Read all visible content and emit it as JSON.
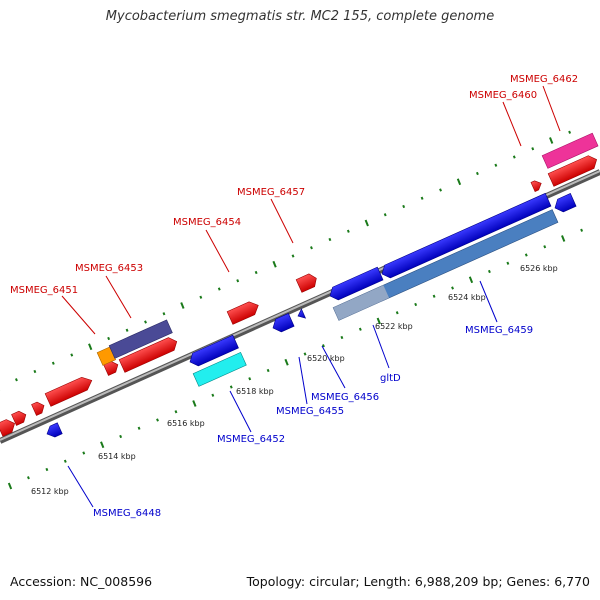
{
  "title": "Mycobacterium smegmatis str. MC2 155, complete genome",
  "footer": {
    "accession": "Accession: NC_008596",
    "stats": "Topology: circular; Length: 6,988,209 bp; Genes: 6,770"
  },
  "colors": {
    "forward_label": "#cc0000",
    "reverse_label": "#0000cc",
    "backbone": "#888888",
    "tick": "#1a7a1a"
  },
  "scale_labels": [
    "6512 kbp",
    "6514 kbp",
    "6516 kbp",
    "6518 kbp",
    "6520 kbp",
    "6522 kbp",
    "6524 kbp",
    "6526 kbp"
  ],
  "genes_forward": [
    {
      "label": "MSMEG_6451"
    },
    {
      "label": "MSMEG_6453"
    },
    {
      "label": "MSMEG_6454"
    },
    {
      "label": "MSMEG_6457"
    },
    {
      "label": "MSMEG_6460"
    },
    {
      "label": "MSMEG_6462"
    }
  ],
  "genes_reverse": [
    {
      "label": "MSMEG_6448"
    },
    {
      "label": "MSMEG_6452"
    },
    {
      "label": "MSMEG_6455"
    },
    {
      "label": "MSMEG_6456"
    },
    {
      "label": "gltD"
    },
    {
      "label": "MSMEG_6459"
    }
  ]
}
